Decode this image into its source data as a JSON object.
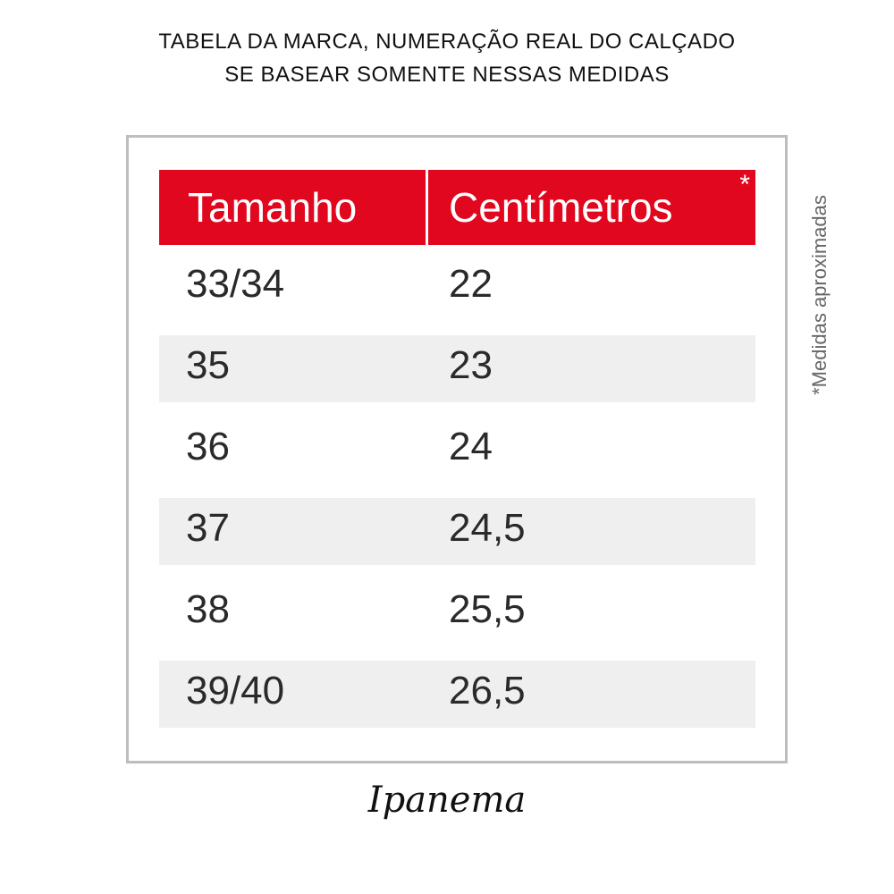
{
  "title_lines": [
    "TABELA DA MARCA, NUMERAÇÃO REAL DO CALÇADO",
    "SE BASEAR SOMENTE NESSAS MEDIDAS"
  ],
  "table": {
    "headers": [
      "Tamanho",
      "Centímetros"
    ],
    "asterisk": "*",
    "rows": [
      [
        "33/34",
        "22"
      ],
      [
        "35",
        "23"
      ],
      [
        "36",
        "24"
      ],
      [
        "37",
        "24,5"
      ],
      [
        "38",
        "25,5"
      ],
      [
        "39/40",
        "26,5"
      ]
    ]
  },
  "side_note": "*Medidas aproximadas",
  "brand_logo": "Ipanema",
  "colors": {
    "header_bg": "#e0071f",
    "alt_row_bg": "#efefef"
  }
}
